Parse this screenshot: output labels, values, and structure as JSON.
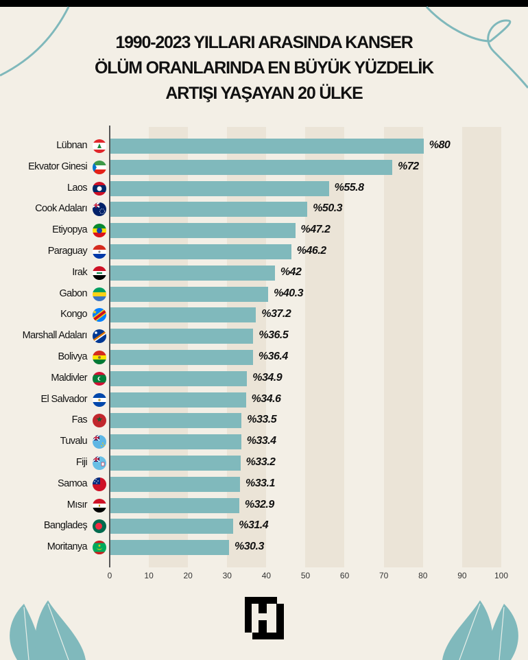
{
  "title": {
    "lines": [
      "1990-2023 YILLARI ARASINDA KANSER",
      "ÖLÜM ORANLARINDA EN BÜYÜK YÜZDELİK",
      "ARTIŞI YAŞAYAN 20 ÜLKE"
    ]
  },
  "colors": {
    "background": "#f3efe6",
    "band": "#ebe4d7",
    "bar": "#80b9bc",
    "accent_teal": "#7fb8bb",
    "text": "#111111"
  },
  "rows": [
    {
      "country": "Lübnan",
      "value": 80,
      "label": "%80",
      "flag": "lebanon-flag-icon"
    },
    {
      "country": "Ekvator Ginesi",
      "value": 72,
      "label": "%72",
      "flag": "equatorial-guinea-flag-icon"
    },
    {
      "country": "Laos",
      "value": 55.8,
      "label": "%55.8",
      "flag": "laos-flag-icon"
    },
    {
      "country": "Cook Adaları",
      "value": 50.3,
      "label": "%50.3",
      "flag": "cook-islands-flag-icon"
    },
    {
      "country": "Etiyopya",
      "value": 47.2,
      "label": "%47.2",
      "flag": "ethiopia-flag-icon"
    },
    {
      "country": "Paraguay",
      "value": 46.2,
      "label": "%46.2",
      "flag": "paraguay-flag-icon"
    },
    {
      "country": "Irak",
      "value": 42,
      "label": "%42",
      "flag": "iraq-flag-icon"
    },
    {
      "country": "Gabon",
      "value": 40.3,
      "label": "%40.3",
      "flag": "gabon-flag-icon"
    },
    {
      "country": "Kongo",
      "value": 37.2,
      "label": "%37.2",
      "flag": "dr-congo-flag-icon"
    },
    {
      "country": "Marshall Adaları",
      "value": 36.5,
      "label": "%36.5",
      "flag": "marshall-islands-flag-icon"
    },
    {
      "country": "Bolivya",
      "value": 36.4,
      "label": "%36.4",
      "flag": "bolivia-flag-icon"
    },
    {
      "country": "Maldivler",
      "value": 34.9,
      "label": "%34.9",
      "flag": "maldives-flag-icon"
    },
    {
      "country": "El Salvador",
      "value": 34.6,
      "label": "%34.6",
      "flag": "el-salvador-flag-icon"
    },
    {
      "country": "Fas",
      "value": 33.5,
      "label": "%33.5",
      "flag": "morocco-flag-icon"
    },
    {
      "country": "Tuvalu",
      "value": 33.4,
      "label": "%33.4",
      "flag": "tuvalu-flag-icon"
    },
    {
      "country": "Fiji",
      "value": 33.2,
      "label": "%33.2",
      "flag": "fiji-flag-icon"
    },
    {
      "country": "Samoa",
      "value": 33.1,
      "label": "%33.1",
      "flag": "samoa-flag-icon"
    },
    {
      "country": "Mısır",
      "value": 32.9,
      "label": "%32.9",
      "flag": "egypt-flag-icon"
    },
    {
      "country": "Bangladeş",
      "value": 31.4,
      "label": "%31.4",
      "flag": "bangladesh-flag-icon"
    },
    {
      "country": "Moritanya",
      "value": 30.3,
      "label": "%30.3",
      "flag": "mauritania-flag-icon"
    }
  ],
  "axis": {
    "ticks": [
      "0",
      "10",
      "20",
      "30",
      "40",
      "50",
      "60",
      "70",
      "80",
      "90",
      "100"
    ]
  },
  "logo": {
    "letter": "H"
  },
  "chart_data": {
    "type": "bar",
    "orientation": "horizontal",
    "title": "1990-2023 YILLARI ARASINDA KANSER ÖLÜM ORANLARINDA EN BÜYÜK YÜZDELİK ARTIŞI YAŞAYAN 20 ÜLKE",
    "categories": [
      "Lübnan",
      "Ekvator Ginesi",
      "Laos",
      "Cook Adaları",
      "Etiyopya",
      "Paraguay",
      "Irak",
      "Gabon",
      "Kongo",
      "Marshall Adaları",
      "Bolivya",
      "Maldivler",
      "El Salvador",
      "Fas",
      "Tuvalu",
      "Fiji",
      "Samoa",
      "Mısır",
      "Bangladeş",
      "Moritanya"
    ],
    "values": [
      80,
      72,
      55.8,
      50.3,
      47.2,
      46.2,
      42,
      40.3,
      37.2,
      36.5,
      36.4,
      34.9,
      34.6,
      33.5,
      33.4,
      33.2,
      33.1,
      32.9,
      31.4,
      30.3
    ],
    "data_labels": [
      "%80",
      "%72",
      "%55.8",
      "%50.3",
      "%47.2",
      "%46.2",
      "%42",
      "%40.3",
      "%37.2",
      "%36.5",
      "%36.4",
      "%34.9",
      "%34.6",
      "%33.5",
      "%33.4",
      "%33.2",
      "%33.1",
      "%32.9",
      "%31.4",
      "%30.3"
    ],
    "xlabel": "",
    "ylabel": "",
    "xlim": [
      0,
      100
    ],
    "xticks": [
      0,
      10,
      20,
      30,
      40,
      50,
      60,
      70,
      80,
      90,
      100
    ],
    "grid": "alternating vertical bands (10-20, 30-40, 50-60, 70-80, 90-100)",
    "legend": "none"
  }
}
